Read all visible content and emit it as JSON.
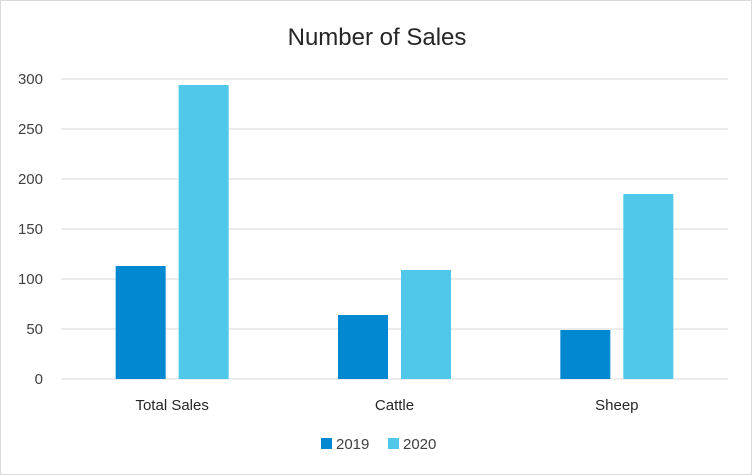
{
  "chart_data": {
    "type": "bar",
    "title": "Number of Sales",
    "categories": [
      "Total Sales",
      "Cattle",
      "Sheep"
    ],
    "series": [
      {
        "name": "2019",
        "values": [
          113,
          64,
          49
        ],
        "color": "#0288D1"
      },
      {
        "name": "2020",
        "values": [
          294,
          109,
          185
        ],
        "color": "#4FC8EA"
      }
    ],
    "yticks": [
      "0",
      "50",
      "100",
      "150",
      "200",
      "250",
      "300"
    ],
    "ylim": [
      0,
      300
    ],
    "grid": true,
    "legend": "bottom"
  }
}
